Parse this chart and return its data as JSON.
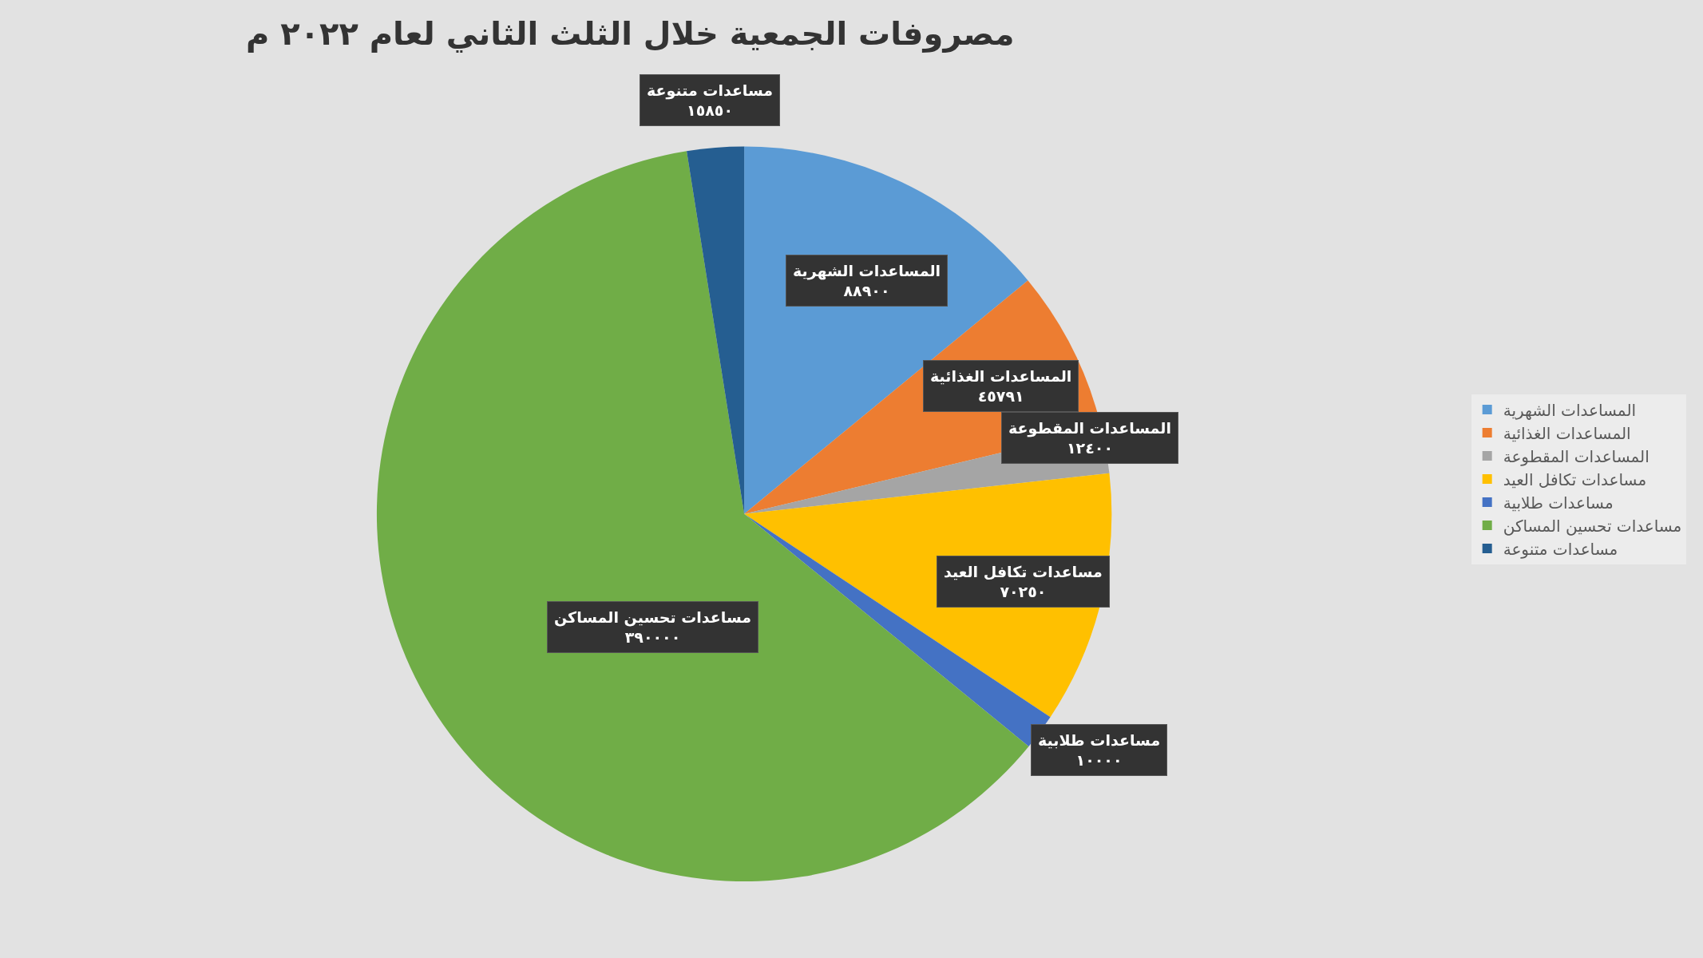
{
  "chart_data": {
    "type": "pie",
    "title": "مصروفات الجمعية خلال الثلث الثاني لعام ٢٠٢٢ م",
    "categories": [
      "المساعدات الشهرية",
      "المساعدات الغذائية",
      "المساعدات المقطوعة",
      "مساعدات تكافل العيد",
      "مساعدات طلابية",
      "مساعدات تحسين المساكن",
      "مساعدات متنوعة"
    ],
    "values": [
      88900,
      45791,
      12400,
      70250,
      10000,
      390000,
      15850
    ],
    "value_labels": [
      "٨٨٩٠٠",
      "٤٥٧٩١",
      "١٢٤٠٠",
      "٧٠٢٥٠",
      "١٠٠٠٠",
      "٣٩٠٠٠٠",
      "١٥٨٥٠"
    ],
    "colors": [
      "#5b9bd5",
      "#ed7d31",
      "#a5a5a5",
      "#ffc000",
      "#4472c4",
      "#70ad47",
      "#255e91"
    ],
    "legend": "right"
  }
}
